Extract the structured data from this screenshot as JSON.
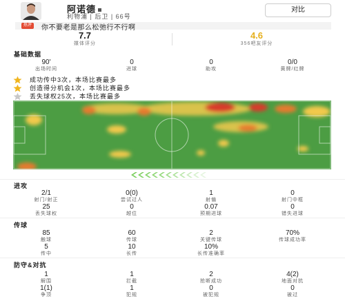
{
  "player": {
    "name": "阿诺德",
    "info": "利物浦 | 后卫 | 66号"
  },
  "compare_label": "对比",
  "comment": {
    "tag": "热评",
    "text": "你不要老是那么松弛行不行啊"
  },
  "ratings": {
    "media": {
      "value": "7.7",
      "label": "媒体评分"
    },
    "fans": {
      "value": "4.6",
      "label": "356吧友评分"
    }
  },
  "basic": {
    "title": "基础数据",
    "items": [
      {
        "value": "90'",
        "label": "出场时间"
      },
      {
        "value": "0",
        "label": "进球"
      },
      {
        "value": "0",
        "label": "助攻"
      },
      {
        "value": "0/0",
        "label": "黄牌/红牌"
      }
    ]
  },
  "highlights": [
    {
      "text": "成功传中3次，本场比赛最多",
      "star": "gold"
    },
    {
      "text": "创造得分机会1次，本场比赛最多",
      "star": "gold"
    },
    {
      "text": "丢失球权25次，本场比赛最多",
      "star": "grey"
    }
  ],
  "colors": {
    "pitch": "#4c9d43",
    "heat_low": "#f2c94c",
    "heat_high": "#d83a2a",
    "gold_star": "#f0b51e",
    "grey_star": "#c8c8c8",
    "direction": "#7ccf5e"
  },
  "attack": {
    "title": "进攻",
    "rows": [
      [
        {
          "value": "2/1",
          "label": "射门/射正"
        },
        {
          "value": "0(0)",
          "label": "尝试过人"
        },
        {
          "value": "1",
          "label": "射偏"
        },
        {
          "value": "0",
          "label": "射门中框"
        }
      ],
      [
        {
          "value": "25",
          "label": "丢失球权"
        },
        {
          "value": "0",
          "label": "越位"
        },
        {
          "value": "0.07",
          "label": "预期进球"
        },
        {
          "value": "0",
          "label": "错失进球"
        }
      ]
    ]
  },
  "passing": {
    "title": "传球",
    "rows": [
      [
        {
          "value": "85",
          "label": "触球"
        },
        {
          "value": "60",
          "label": "传球"
        },
        {
          "value": "2",
          "label": "关键传球"
        },
        {
          "value": "70%",
          "label": "传球成功率"
        }
      ],
      [
        {
          "value": "5",
          "label": "传中"
        },
        {
          "value": "10",
          "label": "长传"
        },
        {
          "value": "10%",
          "label": "长传准确率"
        }
      ]
    ]
  },
  "defense": {
    "title": "防守&对抗",
    "rows": [
      [
        {
          "value": "1",
          "label": "解围"
        },
        {
          "value": "1",
          "label": "拦截"
        },
        {
          "value": "2",
          "label": "抢断成功"
        },
        {
          "value": "4(2)",
          "label": "地面对抗"
        }
      ],
      [
        {
          "value": "1(1)",
          "label": "争顶"
        },
        {
          "value": "1",
          "label": "犯规"
        },
        {
          "value": "0",
          "label": "被犯规"
        },
        {
          "value": "0",
          "label": "被过"
        }
      ]
    ]
  }
}
